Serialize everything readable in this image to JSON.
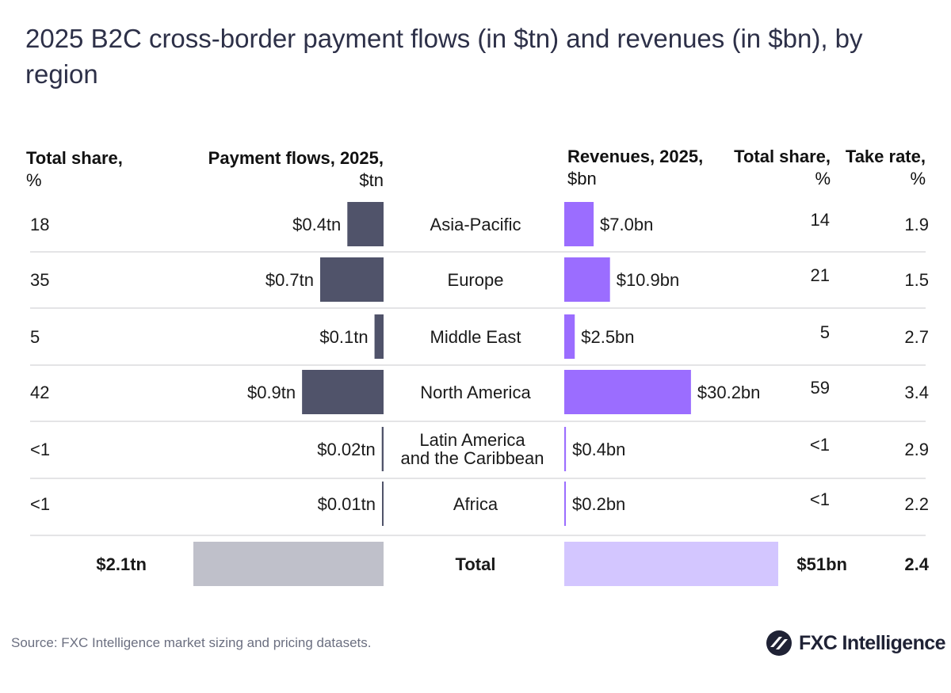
{
  "title": "2025 B2C cross-border payment flows (in $tn) and revenues (in $bn), by region",
  "headers": {
    "left_share_l1": "Total share,",
    "left_share_l2": "%",
    "flows_l1": "Payment flows, 2025,",
    "flows_l2": "$tn",
    "revenues_l1": "Revenues, 2025,",
    "revenues_l2": "$bn",
    "right_share_l1": "Total share,",
    "right_share_l2": "%",
    "take_l1": "Take rate,",
    "take_l2": "%"
  },
  "colors": {
    "flows": "#50536a",
    "revenues": "#9b6dff",
    "total_flows": "#bfc0ca",
    "total_revenues": "#d3c6ff",
    "divider": "#d4d4d8"
  },
  "chart_data": {
    "type": "bar",
    "categories": [
      "Asia-Pacific",
      "Europe",
      "Middle East",
      "North America",
      "Latin America and the Caribbean",
      "Africa"
    ],
    "category_lines": [
      [
        "Asia-Pacific"
      ],
      [
        "Europe"
      ],
      [
        "Middle East"
      ],
      [
        "North America"
      ],
      [
        "Latin America",
        "and the Caribbean"
      ],
      [
        "Africa"
      ]
    ],
    "series": [
      {
        "name": "Payment flows, 2025, $tn",
        "values": [
          0.4,
          0.7,
          0.1,
          0.9,
          0.02,
          0.01
        ],
        "labels": [
          "$0.4tn",
          "$0.7tn",
          "$0.1tn",
          "$0.9tn",
          "$0.02tn",
          "$0.01tn"
        ]
      },
      {
        "name": "Revenues, 2025, $bn",
        "values": [
          7.0,
          10.9,
          2.5,
          30.2,
          0.4,
          0.2
        ],
        "labels": [
          "$7.0bn",
          "$10.9bn",
          "$2.5bn",
          "$30.2bn",
          "$0.4bn",
          "$0.2bn"
        ]
      }
    ],
    "flows_share_pct": [
      "18",
      "35",
      "5",
      "42",
      "<1",
      "<1"
    ],
    "revenues_share_pct": [
      "14",
      "21",
      "5",
      "59",
      "<1",
      "<1"
    ],
    "take_rate_pct": [
      "1.9",
      "1.5",
      "2.7",
      "3.4",
      "2.9",
      "2.2"
    ],
    "total": {
      "label": "Total",
      "flows": 2.1,
      "flows_label": "$2.1tn",
      "revenues": 51,
      "revenues_label": "$51bn",
      "take_rate": "2.4"
    }
  },
  "source": "Source: FXC Intelligence market sizing and pricing datasets.",
  "logo": {
    "text": "FXC Intelligence",
    "icon": "fxc-logo-icon"
  }
}
